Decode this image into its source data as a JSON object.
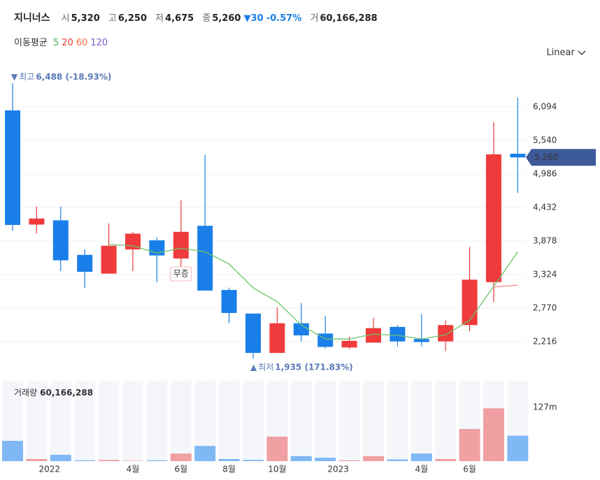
{
  "header": {
    "name": "지니너스",
    "open_label": "시",
    "open": "5,320",
    "high_label": "고",
    "high": "6,250",
    "low_label": "저",
    "low": "4,675",
    "close_label": "종",
    "close": "5,260",
    "change_marker": "▼",
    "change": "30",
    "change_pct": "-0.57%",
    "volume_label": "거",
    "volume": "60,166,288"
  },
  "ma_legend": {
    "title": "이동평균",
    "items": [
      {
        "name": "5",
        "color": "#4caf50"
      },
      {
        "name": "20",
        "color": "#e53935"
      },
      {
        "name": "60",
        "color": "#ff7043"
      },
      {
        "name": "120",
        "color": "#7e57c2"
      }
    ]
  },
  "scale_mode": "Linear",
  "chart_data": [
    {
      "type": "candlestick",
      "categories": [
        null,
        null,
        "2022",
        null,
        null,
        "4월",
        null,
        "6월",
        null,
        "8월",
        null,
        "10월",
        null,
        null,
        "2023",
        null,
        null,
        "4월",
        null,
        "6월",
        null,
        null
      ],
      "open": [
        6036,
        4150,
        4220,
        3650,
        3340,
        3740,
        3890,
        3590,
        4130,
        3070,
        2680,
        2030,
        2520,
        2350,
        2120,
        2200,
        2460,
        2260,
        2220,
        2490,
        3200,
        5320
      ],
      "high": [
        6488,
        4450,
        4450,
        3740,
        4170,
        4030,
        3940,
        4550,
        5300,
        3110,
        2680,
        2780,
        2850,
        2640,
        2300,
        2610,
        2490,
        2670,
        2570,
        3780,
        5840,
        6250
      ],
      "low": [
        4050,
        4000,
        3380,
        3100,
        3340,
        3380,
        3200,
        3460,
        3060,
        2520,
        1935,
        2030,
        2220,
        2100,
        2090,
        2200,
        2140,
        2140,
        2060,
        2390,
        2870,
        4675
      ],
      "close": [
        4144,
        4250,
        3560,
        3370,
        3800,
        4000,
        3640,
        4030,
        3060,
        2690,
        2030,
        2520,
        2320,
        2130,
        2230,
        2440,
        2220,
        2210,
        2490,
        3240,
        5310,
        5260
      ],
      "up_color": "#ef3b3b",
      "down_color": "#1a7fe8",
      "moving_averages": [
        {
          "name": "5",
          "color": "#6cc46c",
          "values": [
            null,
            null,
            null,
            null,
            3820,
            3800,
            3680,
            3760,
            3700,
            3500,
            3105,
            2875,
            2490,
            2260,
            2260,
            2340,
            2320,
            2260,
            2330,
            2570,
            3130,
            3700
          ]
        },
        {
          "name": "20",
          "color": "#f08a8a",
          "values": [
            null,
            null,
            null,
            null,
            null,
            null,
            null,
            null,
            null,
            null,
            null,
            null,
            null,
            null,
            null,
            null,
            null,
            null,
            null,
            null,
            3120,
            3150
          ]
        }
      ],
      "ylim": [
        1743,
        6648
      ],
      "yticks": [
        {
          "value": 2216,
          "label": "2,216"
        },
        {
          "value": 2770,
          "label": "2,770"
        },
        {
          "value": 3324,
          "label": "3,324"
        },
        {
          "value": 3878,
          "label": "3,878"
        },
        {
          "value": 4432,
          "label": "4,432"
        },
        {
          "value": 4986,
          "label": "4,986"
        },
        {
          "value": 5540,
          "label": "5,540"
        },
        {
          "value": 6094,
          "label": "6,094"
        }
      ],
      "grid": true,
      "current_label": "5,260",
      "max_marker": "▼",
      "max_title": "최고",
      "max_text": "6,488 (-18.93%)",
      "min_marker": "▲",
      "min_title": "최저",
      "min_text": "1,935 (171.83%)",
      "event_annotation": "무증"
    },
    {
      "type": "bar",
      "title": "거래량",
      "current": "60,166,288",
      "values": [
        48,
        5,
        15,
        2,
        3,
        1,
        2,
        18,
        36,
        5,
        3,
        58,
        12,
        8,
        2,
        12,
        4,
        18,
        5,
        76,
        125,
        60.166288
      ],
      "up_color": "#f0a0a3",
      "down_color": "#80b8f5",
      "ylim": [
        0,
        190
      ],
      "yticks": [
        {
          "value": 127,
          "label": "127m"
        }
      ]
    }
  ]
}
